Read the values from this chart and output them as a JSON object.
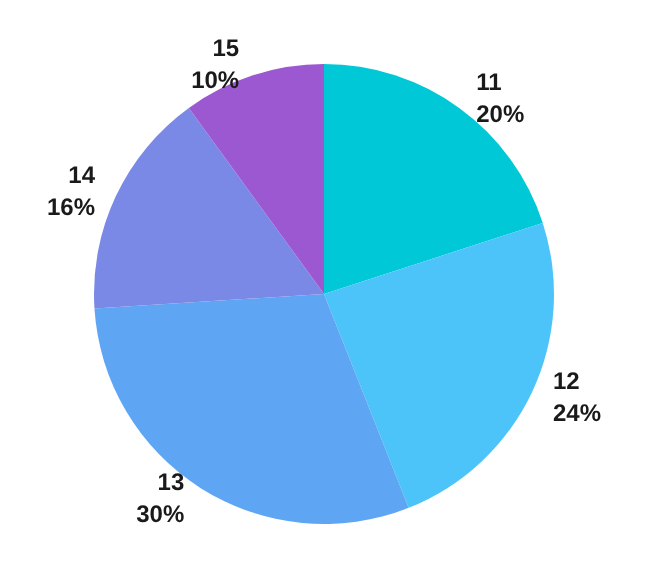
{
  "chart_data": {
    "type": "pie",
    "categories": [
      "11",
      "12",
      "13",
      "14",
      "15"
    ],
    "values": [
      20,
      24,
      30,
      16,
      10
    ],
    "value_labels": [
      "20%",
      "24%",
      "30%",
      "16%",
      "10%"
    ],
    "colors": [
      "#00c8d7",
      "#4cc4fa",
      "#5ea6f4",
      "#7a88e6",
      "#9b58d1"
    ],
    "legend": false
  }
}
